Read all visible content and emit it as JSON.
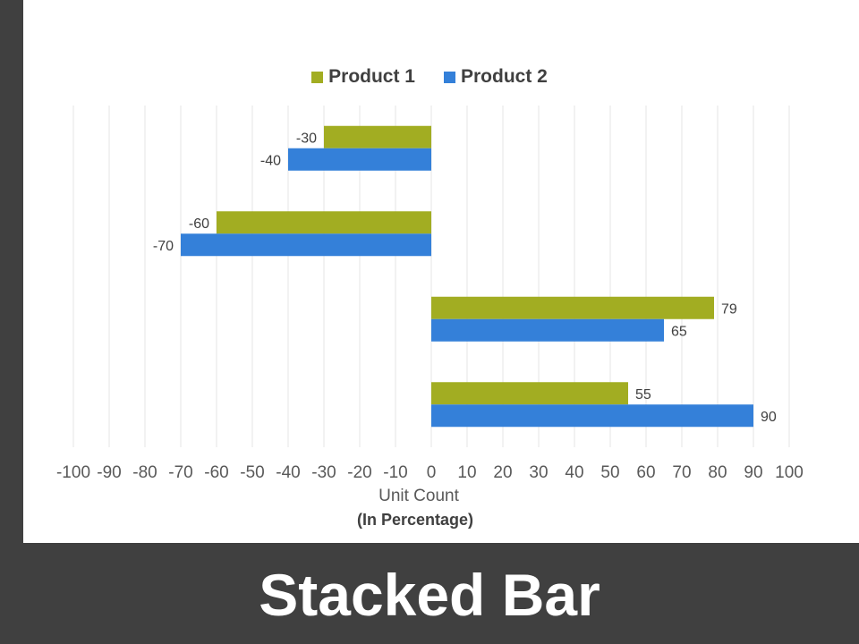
{
  "slide_title": "Stacked Bar",
  "colors": {
    "product_1": "#a2ad22",
    "product_2": "#3480d9"
  },
  "chart_data": {
    "type": "bar",
    "orientation": "horizontal",
    "categories": [
      "",
      "",
      "",
      ""
    ],
    "series": [
      {
        "name": "Product 1",
        "values": [
          -30,
          -60,
          79,
          55
        ]
      },
      {
        "name": "Product 2",
        "values": [
          -40,
          -70,
          65,
          90
        ]
      }
    ],
    "xlabel": "Unit Count",
    "xlabel_sub": "(In Percentage)",
    "xlim": [
      -100,
      100
    ],
    "x_ticks": [
      -100,
      -90,
      -80,
      -70,
      -60,
      -50,
      -40,
      -30,
      -20,
      -10,
      0,
      10,
      20,
      30,
      40,
      50,
      60,
      70,
      80,
      90,
      100
    ],
    "grid": true,
    "legend_position": "top"
  }
}
